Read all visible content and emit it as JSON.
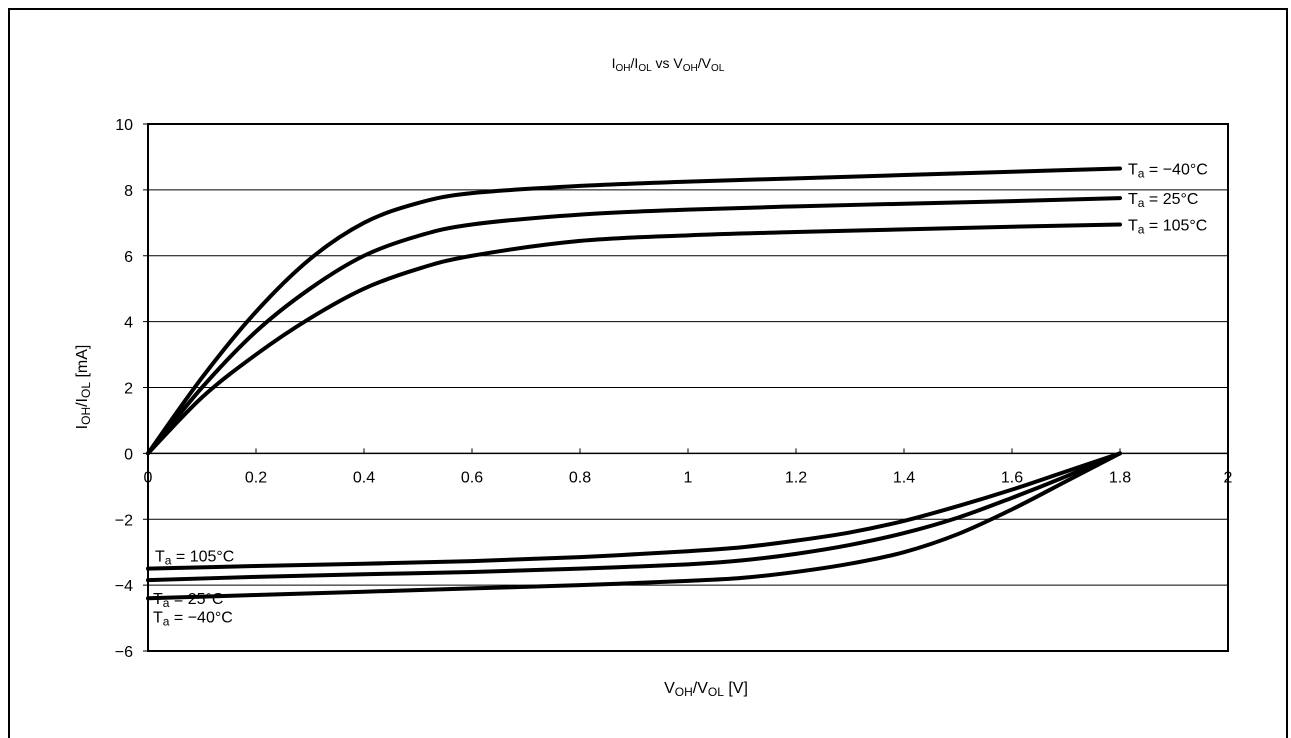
{
  "chart_data": {
    "type": "line",
    "title": {
      "base1": "I",
      "sub1": "OH",
      "mid1": "/I",
      "sub2": "OL",
      "mid2": " vs V",
      "sub3": "OH",
      "mid3": "/V",
      "sub4": "OL"
    },
    "xlabel": {
      "base1": "V",
      "sub1": "OH",
      "mid1": "/V",
      "sub2": "OL",
      "tail": " [V]"
    },
    "ylabel": {
      "base1": "I",
      "sub1": "OH",
      "mid1": "/I",
      "sub2": "OL",
      "tail": " [mA]"
    },
    "xlim": [
      0,
      2
    ],
    "ylim": [
      -6,
      10
    ],
    "x_ticks": [
      0,
      0.2,
      0.4,
      0.6,
      0.8,
      1,
      1.2,
      1.4,
      1.6,
      1.8,
      2
    ],
    "x_tick_labels": [
      "0",
      "0.2",
      "0.4",
      "0.6",
      "0.8",
      "1",
      "1.2",
      "1.4",
      "1.6",
      "1.8",
      "2"
    ],
    "y_ticks": [
      -6,
      -4,
      -2,
      0,
      2,
      4,
      6,
      8,
      10
    ],
    "y_tick_labels": [
      "−6",
      "−4",
      "−2",
      "0",
      "2",
      "4",
      "6",
      "8",
      "10"
    ],
    "grid": "horizontal",
    "series": [
      {
        "name": "T_a = −40°C",
        "label_base": "T",
        "label_sub": "a",
        "label_rest": " = −40°C",
        "label_pos": "right-end",
        "x": [
          0,
          0.1,
          0.2,
          0.3,
          0.4,
          0.5,
          0.6,
          0.8,
          1.0,
          1.2,
          1.4,
          1.6,
          1.8
        ],
        "y": [
          0,
          2.3,
          4.3,
          5.9,
          7.0,
          7.6,
          7.9,
          8.12,
          8.25,
          8.35,
          8.45,
          8.55,
          8.65
        ]
      },
      {
        "name": "T_a = 25°C",
        "label_base": "T",
        "label_sub": "a",
        "label_rest": " = 25°C",
        "label_pos": "right-end",
        "x": [
          0,
          0.1,
          0.2,
          0.3,
          0.4,
          0.5,
          0.6,
          0.8,
          1.0,
          1.2,
          1.4,
          1.6,
          1.8
        ],
        "y": [
          0,
          2.0,
          3.7,
          5.0,
          6.0,
          6.6,
          6.95,
          7.25,
          7.4,
          7.5,
          7.58,
          7.66,
          7.75
        ]
      },
      {
        "name": "T_a = 105°C",
        "label_base": "T",
        "label_sub": "a",
        "label_rest": " = 105°C",
        "label_pos": "right-end",
        "x": [
          0,
          0.1,
          0.2,
          0.3,
          0.4,
          0.5,
          0.6,
          0.8,
          1.0,
          1.2,
          1.4,
          1.6,
          1.8
        ],
        "y": [
          0,
          1.7,
          3.0,
          4.1,
          5.0,
          5.6,
          6.0,
          6.45,
          6.62,
          6.72,
          6.8,
          6.88,
          6.95
        ]
      },
      {
        "name": "T_a = 105°C",
        "label_base": "T",
        "label_sub": "a",
        "label_rest": " = 105°C",
        "label_pos": "left-start-above",
        "x": [
          0,
          0.2,
          0.4,
          0.6,
          0.8,
          1.0,
          1.1,
          1.2,
          1.3,
          1.4,
          1.5,
          1.6,
          1.7,
          1.8
        ],
        "y": [
          -3.5,
          -3.42,
          -3.35,
          -3.27,
          -3.15,
          -2.97,
          -2.85,
          -2.65,
          -2.4,
          -2.05,
          -1.6,
          -1.1,
          -0.55,
          0
        ]
      },
      {
        "name": "T_a = 25°C",
        "label_base": "T",
        "label_sub": "a",
        "label_rest": " = 25°C",
        "label_pos": "left-start-below",
        "x": [
          0,
          0.2,
          0.4,
          0.6,
          0.8,
          1.0,
          1.1,
          1.2,
          1.3,
          1.4,
          1.5,
          1.6,
          1.7,
          1.8
        ],
        "y": [
          -3.85,
          -3.75,
          -3.67,
          -3.6,
          -3.5,
          -3.37,
          -3.25,
          -3.05,
          -2.78,
          -2.42,
          -1.95,
          -1.35,
          -0.7,
          0
        ]
      },
      {
        "name": "T_a = −40°C",
        "label_base": "T",
        "label_sub": "a",
        "label_rest": " = −40°C",
        "label_pos": "left-start-below",
        "x": [
          0,
          0.2,
          0.4,
          0.6,
          0.8,
          1.0,
          1.1,
          1.2,
          1.3,
          1.4,
          1.5,
          1.6,
          1.7,
          1.8
        ],
        "y": [
          -4.4,
          -4.3,
          -4.2,
          -4.1,
          -4.0,
          -3.87,
          -3.78,
          -3.6,
          -3.35,
          -3.0,
          -2.45,
          -1.7,
          -0.85,
          0
        ]
      }
    ]
  }
}
